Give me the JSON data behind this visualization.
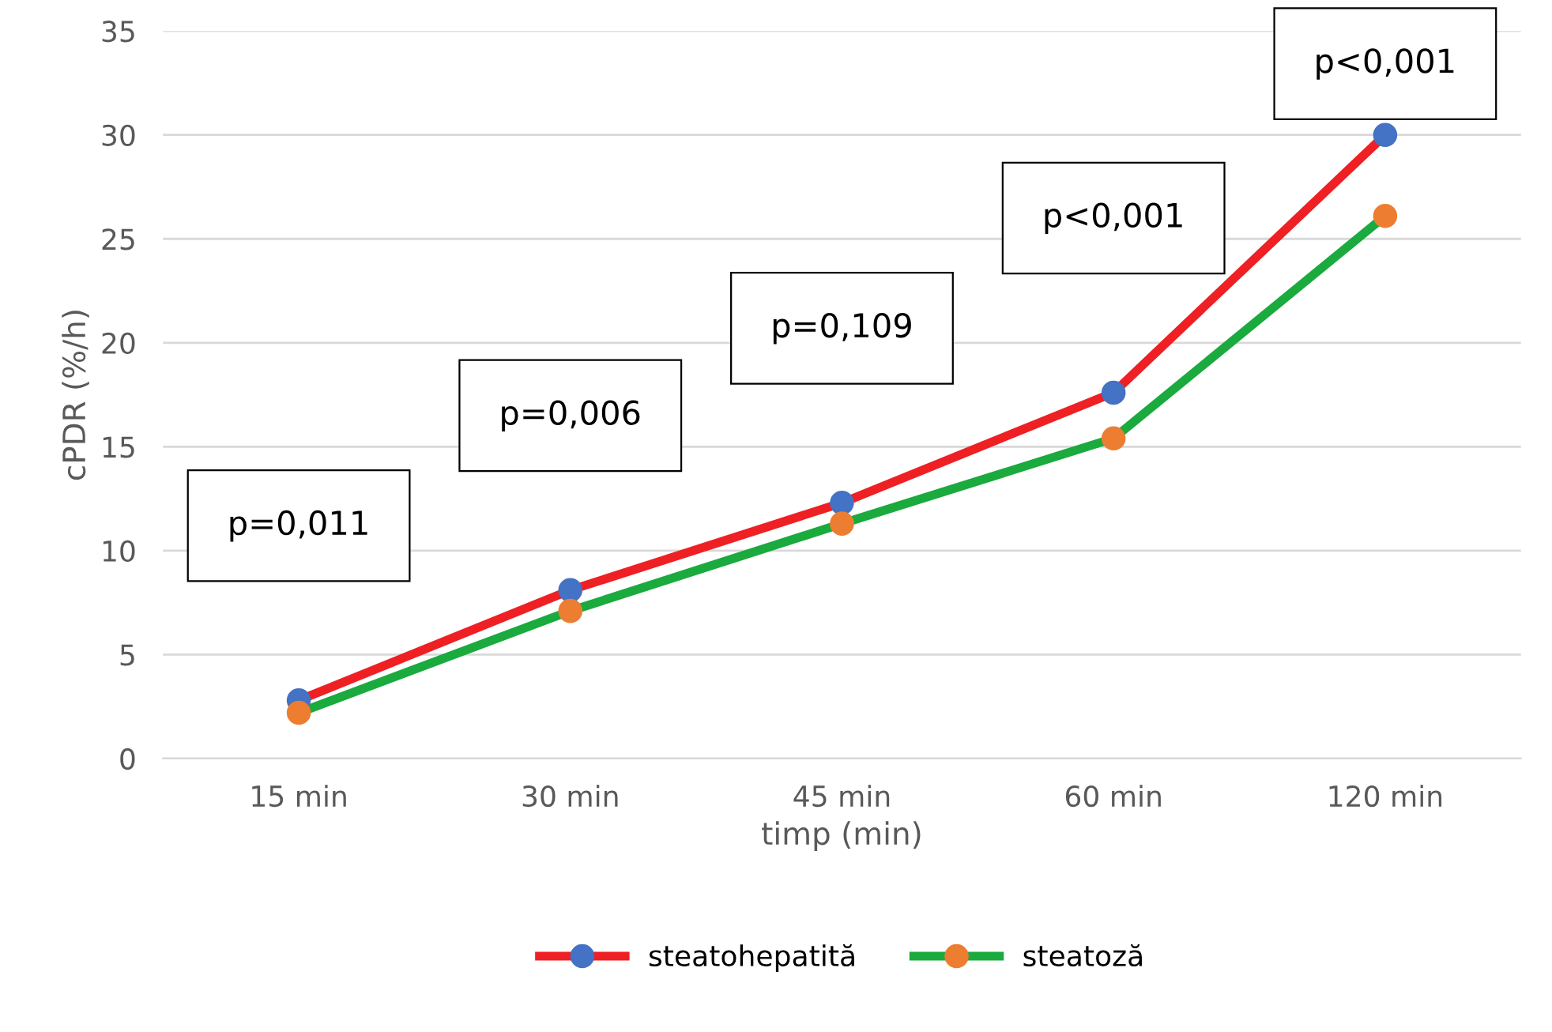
{
  "chart_data": {
    "type": "line",
    "xlabel": "timp (min)",
    "ylabel": "cPDR (%/h)",
    "categories": [
      "15 min",
      "30 min",
      "45 min",
      "60 min",
      "120 min"
    ],
    "series": [
      {
        "name": "steatohepatită",
        "color": "#ee2024",
        "colors": [
          "#4472c4",
          "#4472c4",
          "#4472c4",
          "#4472c4",
          "#4472c4"
        ],
        "values": [
          2.8,
          8.1,
          12.3,
          17.6,
          30.0
        ]
      },
      {
        "name": "steatoză",
        "color": "#1aaa3e",
        "colors": [
          "#ed7d31",
          "#ed7d31",
          "#ed7d31",
          "#ed7d31",
          "#ed7d31"
        ],
        "values": [
          2.2,
          7.1,
          11.3,
          15.4,
          26.1
        ]
      }
    ],
    "ylim": [
      0,
      35
    ],
    "yticks": [
      0,
      5,
      10,
      15,
      20,
      25,
      30,
      35
    ],
    "grid": "y",
    "legend": "bottom",
    "marker": "circle",
    "line_style": "solid",
    "annotations": [
      "p=0,011",
      "p=0,006",
      "p=0,109",
      "p<0,001",
      "p<0,001"
    ]
  }
}
